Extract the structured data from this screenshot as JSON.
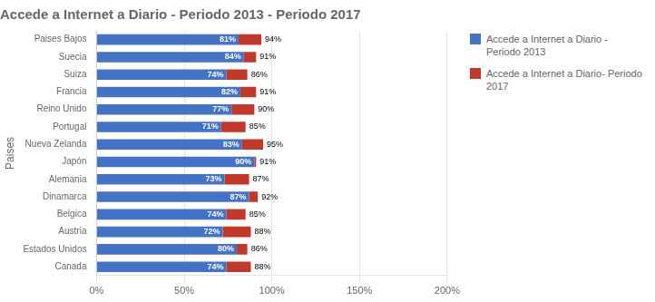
{
  "chart_data": {
    "type": "bar",
    "orientation": "horizontal",
    "stacked": true,
    "title": "Accede a Internet a Diario - Periodo 2013 - Periodo 2017",
    "ylabel": "Paises",
    "categories": [
      "Paises Bajos",
      "Suecia",
      "Suiza",
      "Francia",
      "Reino Unido",
      "Portugal",
      "Nueva Zelanda",
      "Japón",
      "Alemania",
      "Dinamarca",
      "Belgica",
      "Austria",
      "Estados Unidos",
      "Canada"
    ],
    "series": [
      {
        "name": "Accede a Internet a Diario -\nPeriodo 2013",
        "color": "#4472C4",
        "values": [
          81,
          84,
          74,
          82,
          77,
          71,
          83,
          90,
          73,
          87,
          74,
          72,
          80,
          74
        ],
        "value_labels": [
          "81%",
          "84%",
          "74%",
          "82%",
          "77%",
          "71%",
          "83%",
          "90%",
          "73%",
          "87%",
          "74%",
          "72%",
          "80%",
          "74%"
        ],
        "data_labels": true
      },
      {
        "name": "Accede a Internet a Diario- Periodo\n2017",
        "color": "#C0392B",
        "values": [
          13,
          7,
          12,
          9,
          13,
          14,
          12,
          1,
          14,
          5,
          11,
          16,
          6,
          14
        ]
      }
    ],
    "totals": [
      94,
      91,
      86,
      91,
      90,
      85,
      95,
      91,
      87,
      92,
      85,
      88,
      86,
      88
    ],
    "total_labels": [
      "94%",
      "91%",
      "86%",
      "91%",
      "90%",
      "85%",
      "95%",
      "91%",
      "87%",
      "92%",
      "85%",
      "88%",
      "86%",
      "88%"
    ],
    "xlim": [
      0,
      200
    ],
    "xticks": [
      {
        "value": 0,
        "label": "0%"
      },
      {
        "value": 50,
        "label": "50%"
      },
      {
        "value": 100,
        "label": "100%"
      },
      {
        "value": 150,
        "label": "150%"
      },
      {
        "value": 200,
        "label": "200%"
      }
    ],
    "grid": true,
    "legend": "right"
  }
}
